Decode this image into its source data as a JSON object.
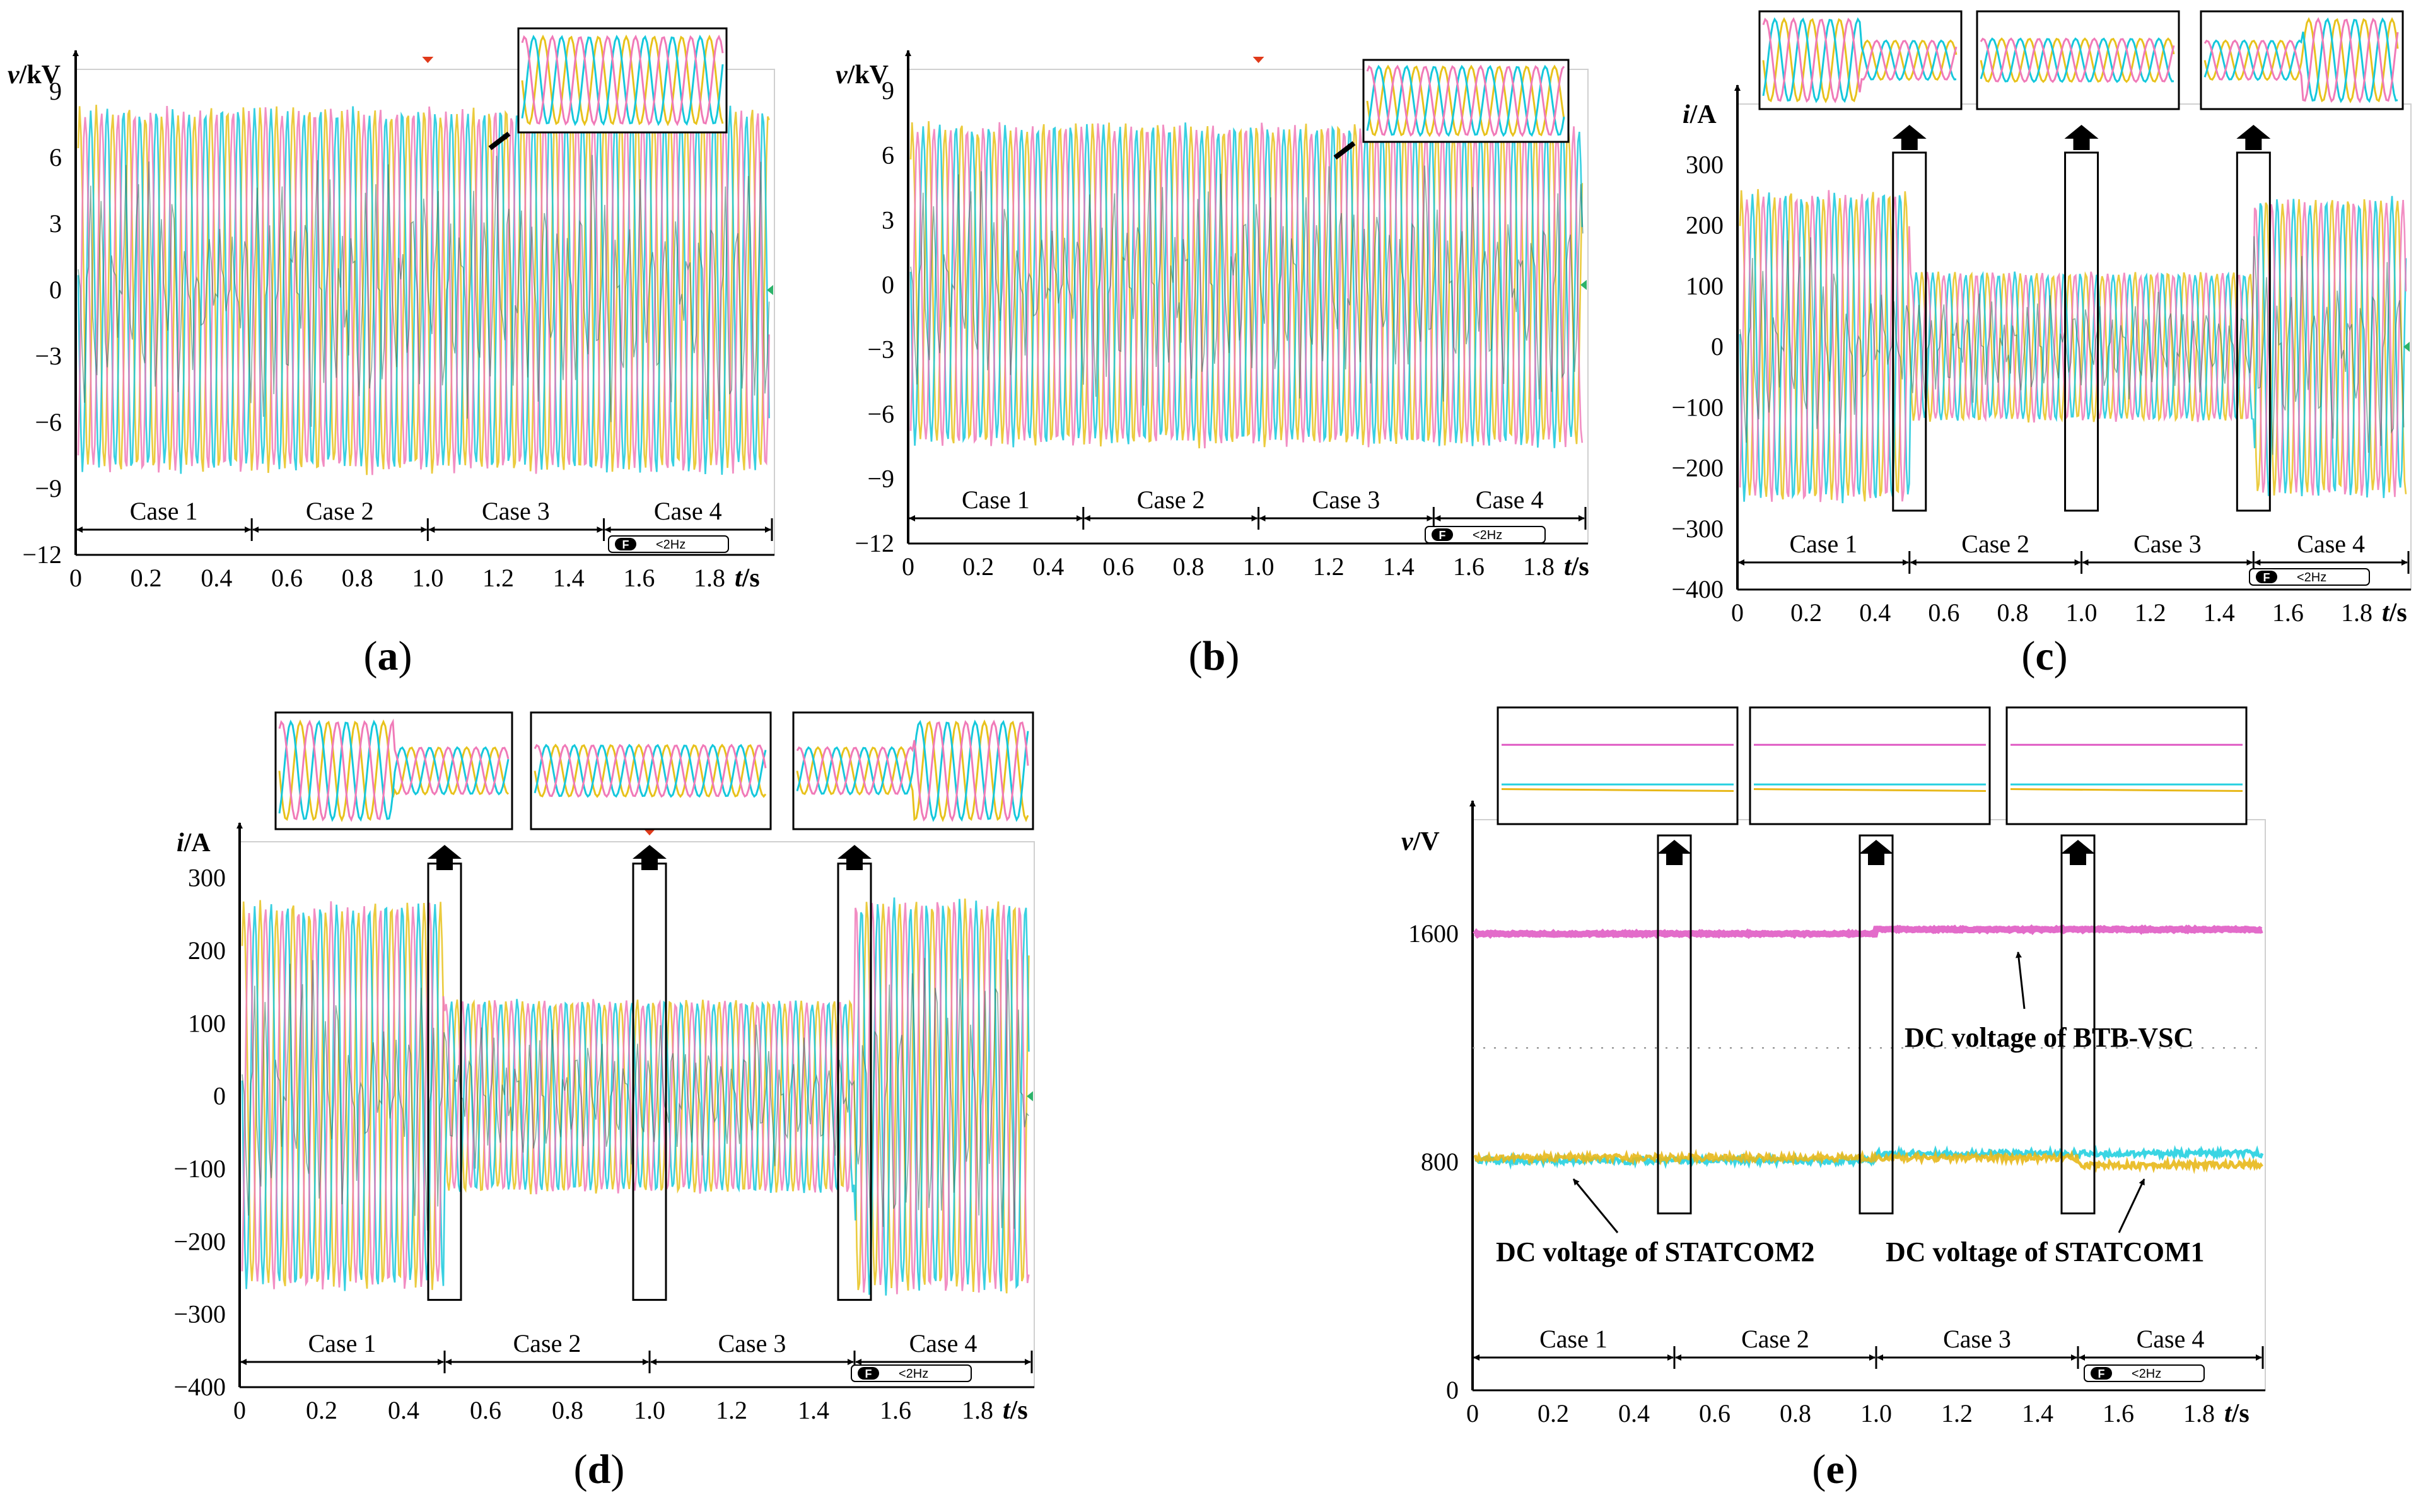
{
  "colors": {
    "a": "#e8c21c",
    "b": "#15c8dc",
    "c": "#f07ab8",
    "dark": "#2a6e5a",
    "green": "#2db36a",
    "mag": "#e05cc4",
    "teal": "#25d0e0",
    "amber": "#e8b81a"
  },
  "badge": {
    "letter": "F",
    "text": "<2Hz"
  },
  "arrow_icon": "up-arrow-icon",
  "chart_data": [
    {
      "id": "a",
      "type": "line",
      "caption": "a",
      "ylabel_var": "v",
      "ylabel_unit": "/kV",
      "xlabel_var": "t",
      "xlabel_unit": "/s",
      "ylim": [
        -12,
        10
      ],
      "xlim": [
        0,
        2.0
      ],
      "yticks": [
        9,
        6,
        3,
        0,
        -3,
        -6,
        -9,
        -12
      ],
      "xticks": [
        "0",
        "0.2",
        "0.4",
        "0.6",
        "0.8",
        "1.0",
        "1.2",
        "1.4",
        "1.6",
        "1.8"
      ],
      "cases": [
        "Case 1",
        "Case 2",
        "Case 3",
        "Case 4"
      ],
      "segments": [
        {
          "from": 0,
          "to": 2.0,
          "amplitude": 8.4
        }
      ],
      "series": [
        "phase a",
        "phase b",
        "phase c"
      ]
    },
    {
      "id": "b",
      "type": "line",
      "caption": "b",
      "ylabel_var": "v",
      "ylabel_unit": "/kV",
      "xlabel_var": "t",
      "xlabel_unit": "/s",
      "ylim": [
        -12,
        10
      ],
      "xlim": [
        0,
        2.0
      ],
      "yticks": [
        9,
        6,
        3,
        0,
        -3,
        -6,
        -9,
        -12
      ],
      "xticks": [
        "0",
        "0.2",
        "0.4",
        "0.6",
        "0.8",
        "1.0",
        "1.2",
        "1.4",
        "1.6",
        "1.8"
      ],
      "cases": [
        "Case 1",
        "Case 2",
        "Case 3",
        "Case 4"
      ],
      "segments": [
        {
          "from": 0,
          "to": 2.0,
          "amplitude": 7.6
        }
      ],
      "series": [
        "phase a",
        "phase b",
        "phase c"
      ]
    },
    {
      "id": "c",
      "type": "line",
      "caption": "c",
      "ylabel_var": "i",
      "ylabel_unit": "/A",
      "xlabel_var": "t",
      "xlabel_unit": "/s",
      "ylim": [
        -400,
        400
      ],
      "xlim": [
        0,
        2.0
      ],
      "yticks": [
        300,
        200,
        100,
        0,
        -100,
        -200,
        -300,
        -400
      ],
      "xticks": [
        "0",
        "0.2",
        "0.4",
        "0.6",
        "0.8",
        "1.0",
        "1.2",
        "1.4",
        "1.6",
        "1.8"
      ],
      "cases": [
        "Case 1",
        "Case 2",
        "Case 3",
        "Case 4"
      ],
      "segments": [
        {
          "from": 0,
          "to": 0.5,
          "amplitude": 260
        },
        {
          "from": 0.5,
          "to": 1.5,
          "amplitude": 125
        },
        {
          "from": 1.5,
          "to": 2.0,
          "amplitude": 250
        }
      ],
      "zoom_at": [
        0.5,
        1.0,
        1.5
      ],
      "series": [
        "phase a",
        "phase b",
        "phase c"
      ]
    },
    {
      "id": "d",
      "type": "line",
      "caption": "d",
      "ylabel_var": "i",
      "ylabel_unit": "/A",
      "xlabel_var": "t",
      "xlabel_unit": "/s",
      "ylim": [
        -400,
        350
      ],
      "xlim": [
        0,
        2.0
      ],
      "yticks": [
        300,
        200,
        100,
        0,
        -100,
        -200,
        -300,
        -400
      ],
      "xticks": [
        "0",
        "0.2",
        "0.4",
        "0.6",
        "0.8",
        "1.0",
        "1.2",
        "1.4",
        "1.6",
        "1.8"
      ],
      "cases": [
        "Case 1",
        "Case 2",
        "Case 3",
        "Case 4"
      ],
      "segments": [
        {
          "from": 0,
          "to": 0.5,
          "amplitude": 270
        },
        {
          "from": 0.5,
          "to": 1.5,
          "amplitude": 135
        },
        {
          "from": 1.5,
          "to": 2.0,
          "amplitude": 275
        }
      ],
      "zoom_at": [
        0.5,
        1.0,
        1.5
      ],
      "series": [
        "phase a",
        "phase b",
        "phase c"
      ]
    },
    {
      "id": "e",
      "type": "line",
      "caption": "e",
      "ylabel_var": "v",
      "ylabel_unit": "/V",
      "xlabel_var": "t",
      "xlabel_unit": "/s",
      "ylim": [
        0,
        2000
      ],
      "xlim": [
        0,
        2.0
      ],
      "yticks": [
        1600,
        800,
        0
      ],
      "xticks": [
        "0",
        "0.2",
        "0.4",
        "0.6",
        "0.8",
        "1.0",
        "1.2",
        "1.4",
        "1.6",
        "1.8"
      ],
      "cases": [
        "Case 1",
        "Case 2",
        "Case 3",
        "Case 4"
      ],
      "zoom_at": [
        0.5,
        1.0,
        1.5
      ],
      "dc_series": [
        {
          "name": "DC voltage of BTB-VSC",
          "before": 1600,
          "after": 1615,
          "step_at": 1.0
        },
        {
          "name": "DC voltage of STATCOM2",
          "before": 805,
          "after": 830,
          "step_at": 1.0
        },
        {
          "name": "DC voltage of STATCOM1",
          "before": 815,
          "after": 790,
          "step_at": 1.5
        }
      ]
    }
  ]
}
